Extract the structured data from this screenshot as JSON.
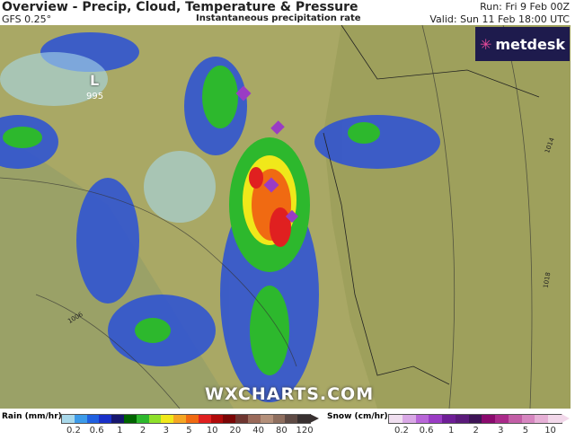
{
  "header": {
    "title": "Overview - Precip, Cloud, Temperature & Pressure",
    "model": "GFS 0.25°",
    "subtitle": "Instantaneous precipitation rate",
    "run": "Run: Fri 9 Feb 00Z",
    "valid": "Valid: Sun 11 Feb 18:00 UTC"
  },
  "map": {
    "low_label": "L",
    "low_pressure": "995",
    "isobars": [
      "1006",
      "1014",
      "1018"
    ],
    "watermark": "WXCHARTS.COM",
    "logo": "metdesk"
  },
  "rain_legend": {
    "label": "Rain (mm/hr)",
    "ticks": [
      "0.2",
      "0.6",
      "1",
      "2",
      "3",
      "5",
      "10",
      "20",
      "40",
      "80",
      "120"
    ],
    "colors": [
      "#a8d8ea",
      "#3d9be9",
      "#2060e0",
      "#1a30c8",
      "#16166e",
      "#006400",
      "#2db82d",
      "#8ee02a",
      "#f0e81a",
      "#f5a623",
      "#f06a12",
      "#e02020",
      "#b00a0a",
      "#7a0505",
      "#6e3530",
      "#9a6a5a",
      "#b4907a",
      "#8e6e5e",
      "#5e4a44",
      "#383030"
    ]
  },
  "snow_legend": {
    "label": "Snow (cm/hr)",
    "ticks": [
      "0.2",
      "0.6",
      "1",
      "2",
      "3",
      "5",
      "10"
    ],
    "colors": [
      "#f0dff0",
      "#d9a8e6",
      "#b866d8",
      "#9a3cc4",
      "#6e1e96",
      "#5a1a7a",
      "#3e1456",
      "#8a0a6e",
      "#aa2a8a",
      "#c25ea6",
      "#d686c0",
      "#e6b0d6",
      "#f2d8ea"
    ]
  }
}
